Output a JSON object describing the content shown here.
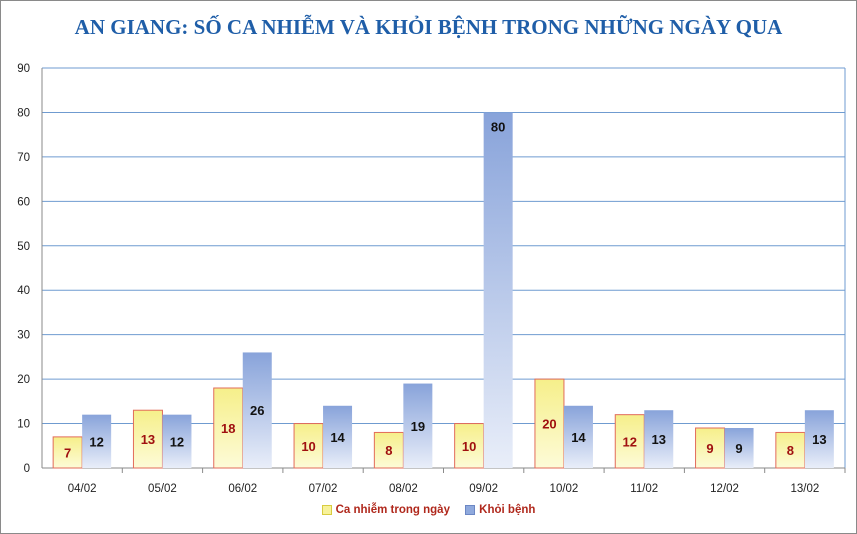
{
  "chart_data": {
    "type": "bar",
    "title": "AN GIANG: SỐ CA NHIỄM VÀ KHỎI BỆNH TRONG NHỮNG NGÀY QUA",
    "categories": [
      "04/02",
      "05/02",
      "06/02",
      "07/02",
      "08/02",
      "09/02",
      "10/02",
      "11/02",
      "12/02",
      "13/02"
    ],
    "series": [
      {
        "name": "Ca nhiễm trong ngày",
        "values": [
          7,
          13,
          18,
          10,
          8,
          10,
          20,
          12,
          9,
          8
        ],
        "color": "#f7f29a"
      },
      {
        "name": "Khỏi bệnh",
        "values": [
          12,
          12,
          26,
          14,
          19,
          80,
          14,
          13,
          9,
          13
        ],
        "color": "#8fa9dd"
      }
    ],
    "xlabel": "",
    "ylabel": "",
    "ylim": [
      0,
      90
    ],
    "yticks": [
      0,
      10,
      20,
      30,
      40,
      50,
      60,
      70,
      80,
      90
    ],
    "grid": true,
    "legend_position": "bottom",
    "colors": {
      "title": "#1f5ea8",
      "grid": "#6f9bd0",
      "infected_label": "#a01010",
      "legend_text": "#b0281c"
    }
  }
}
